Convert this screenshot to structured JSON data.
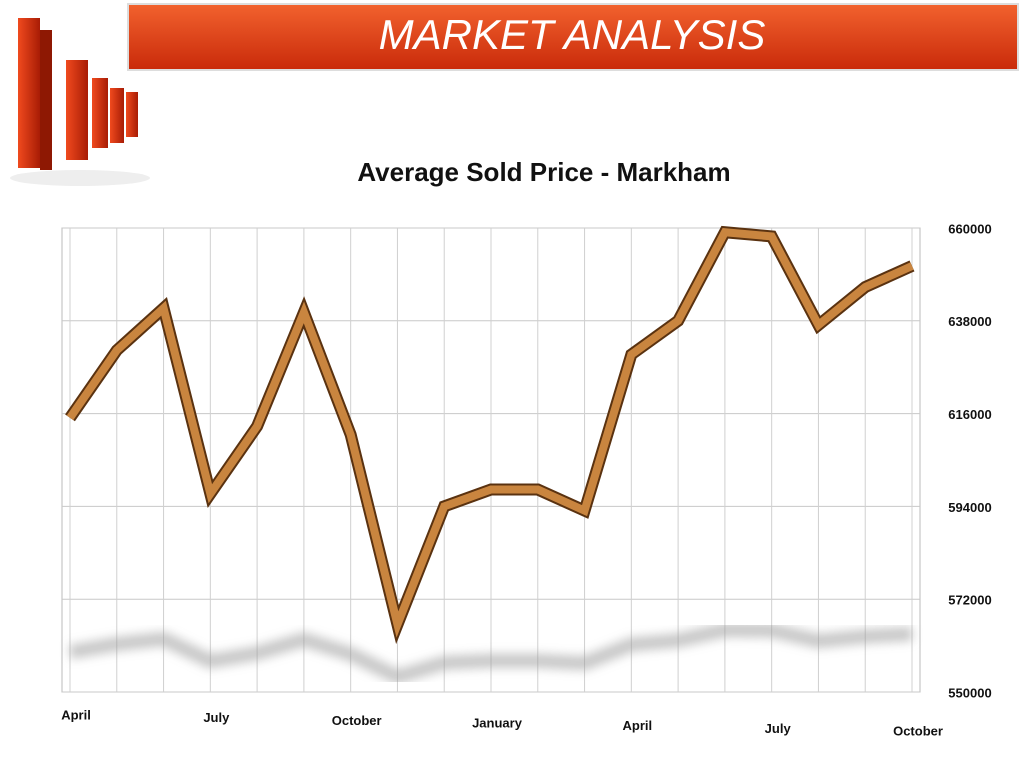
{
  "header": {
    "title": "MARKET ANALYSIS"
  },
  "chart_data": {
    "type": "line",
    "title": "Average Sold Price - Markham",
    "categories": [
      "April",
      null,
      null,
      "July",
      null,
      null,
      "October",
      null,
      null,
      "January",
      null,
      null,
      "April",
      null,
      null,
      "July",
      null,
      null,
      "October"
    ],
    "series": [
      {
        "name": "Average Sold Price",
        "color": "#c9853f",
        "values": [
          615000,
          631000,
          641000,
          597000,
          613000,
          640000,
          611000,
          566000,
          594000,
          598000,
          598000,
          593000,
          630000,
          638000,
          659000,
          658000,
          637000,
          646000,
          651000
        ]
      }
    ],
    "ylim": [
      550000,
      660000
    ],
    "yticks": [
      550000,
      572000,
      594000,
      616000,
      638000,
      660000
    ],
    "grid": true
  }
}
